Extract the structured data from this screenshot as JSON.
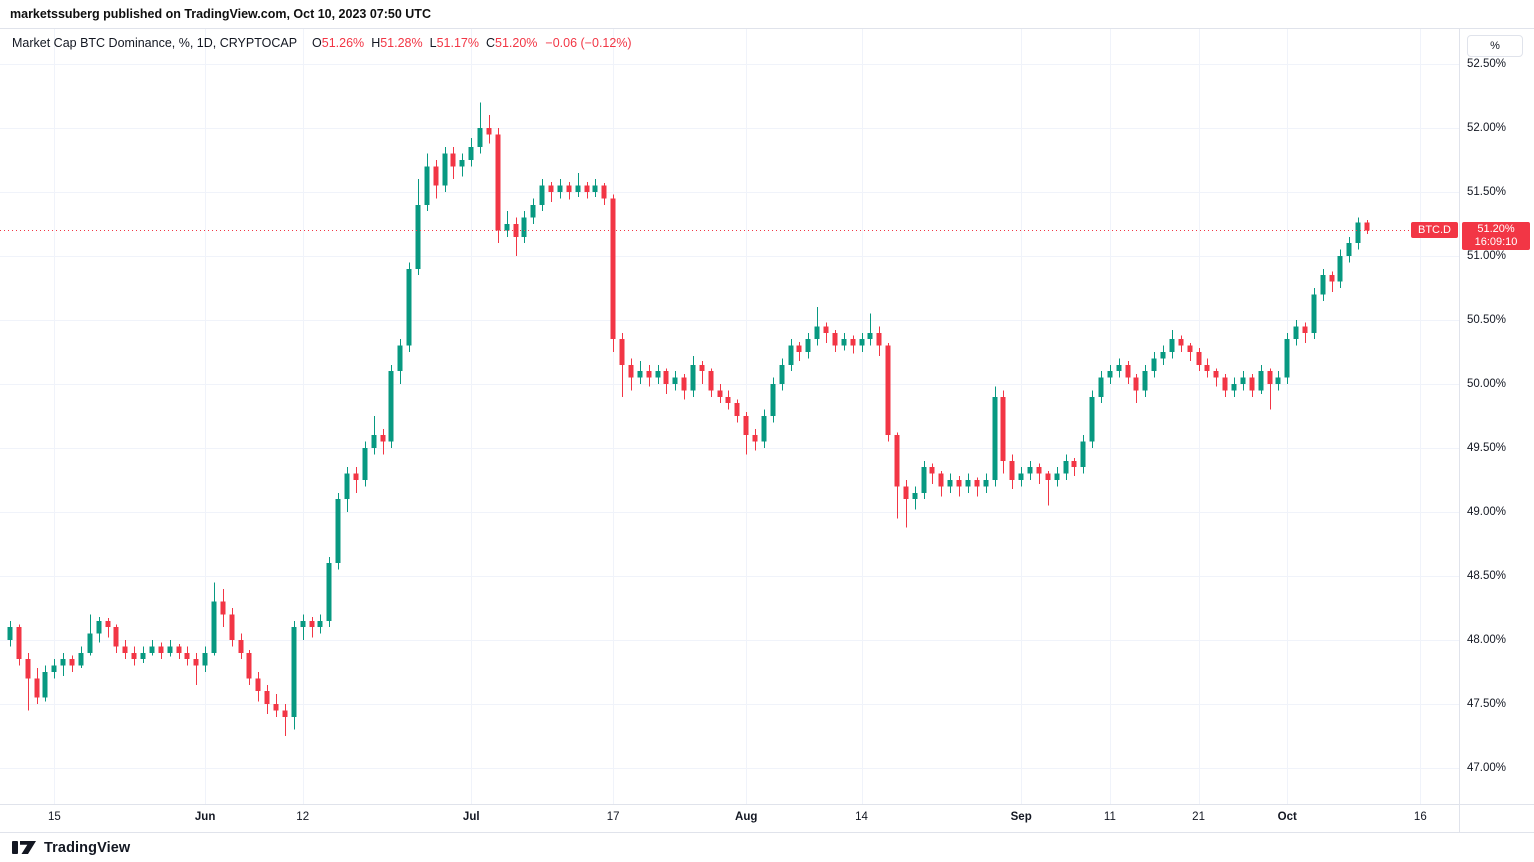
{
  "header": {
    "attribution": "marketssuberg published on TradingView.com, Oct 10, 2023 07:50 UTC"
  },
  "legend": {
    "title": "Market Cap BTC Dominance, %, 1D, CRYPTOCAP",
    "open_label": "O",
    "open": "51.26%",
    "high_label": "H",
    "high": "51.28%",
    "low_label": "L",
    "low": "51.17%",
    "close_label": "C",
    "close": "51.20%",
    "change": "−0.06 (−0.12%)"
  },
  "symbol_badge": "BTC.D",
  "price_axis": {
    "unit": "%",
    "labels": [
      "52.50%",
      "52.00%",
      "51.50%",
      "51.00%",
      "50.50%",
      "50.00%",
      "49.50%",
      "49.00%",
      "48.50%",
      "48.00%",
      "47.50%",
      "47.00%"
    ],
    "last_price_label": "51.20%",
    "countdown": "16:09:10"
  },
  "time_axis": {
    "ticks": [
      {
        "label": "15",
        "index": 5,
        "major": false
      },
      {
        "label": "Jun",
        "index": 22,
        "major": true
      },
      {
        "label": "12",
        "index": 33,
        "major": false
      },
      {
        "label": "Jul",
        "index": 52,
        "major": true
      },
      {
        "label": "17",
        "index": 68,
        "major": false
      },
      {
        "label": "Aug",
        "index": 83,
        "major": true
      },
      {
        "label": "14",
        "index": 96,
        "major": false
      },
      {
        "label": "Sep",
        "index": 114,
        "major": true
      },
      {
        "label": "11",
        "index": 124,
        "major": false
      },
      {
        "label": "21",
        "index": 134,
        "major": false
      },
      {
        "label": "Oct",
        "index": 144,
        "major": true
      },
      {
        "label": "16",
        "index": 159,
        "major": false
      }
    ]
  },
  "footer": {
    "brand": "TradingView"
  },
  "colors": {
    "up": "#089981",
    "down": "#f23645",
    "grid": "#f0f3fa",
    "axis_text": "#131722",
    "accent_red": "#f23645"
  },
  "chart_data": {
    "type": "candlestick",
    "title": "Market Cap BTC Dominance",
    "symbol": "CRYPTOCAP:BTC.D",
    "interval": "1D",
    "unit": "%",
    "y_range_visible": [
      46.8,
      52.75
    ],
    "y_gridlines": [
      47.0,
      47.5,
      48.0,
      48.5,
      49.0,
      49.5,
      50.0,
      50.5,
      51.0,
      51.5,
      52.0,
      52.5
    ],
    "price_line": 51.2,
    "last": {
      "open": 51.26,
      "high": 51.28,
      "low": 51.17,
      "close": 51.2,
      "change": -0.06,
      "change_pct": -0.12
    },
    "start_date": "2023-05-10",
    "interval_days": 1,
    "ohlc_note": "per-candle [open,high,low,close], daily from start_date, values in % dominance (estimated from chart)",
    "candles": [
      [
        48.0,
        48.15,
        47.95,
        48.1
      ],
      [
        48.1,
        48.12,
        47.8,
        47.85
      ],
      [
        47.85,
        47.9,
        47.45,
        47.7
      ],
      [
        47.7,
        47.78,
        47.5,
        47.55
      ],
      [
        47.55,
        47.8,
        47.52,
        47.75
      ],
      [
        47.75,
        47.85,
        47.7,
        47.8
      ],
      [
        47.8,
        47.9,
        47.72,
        47.85
      ],
      [
        47.85,
        47.88,
        47.75,
        47.8
      ],
      [
        47.8,
        47.95,
        47.78,
        47.9
      ],
      [
        47.9,
        48.2,
        47.88,
        48.05
      ],
      [
        48.05,
        48.18,
        47.98,
        48.15
      ],
      [
        48.15,
        48.17,
        48.02,
        48.1
      ],
      [
        48.1,
        48.12,
        47.9,
        47.95
      ],
      [
        47.95,
        48.0,
        47.85,
        47.9
      ],
      [
        47.9,
        47.95,
        47.8,
        47.85
      ],
      [
        47.85,
        47.95,
        47.82,
        47.9
      ],
      [
        47.9,
        48.0,
        47.88,
        47.95
      ],
      [
        47.95,
        47.98,
        47.85,
        47.9
      ],
      [
        47.9,
        48.0,
        47.87,
        47.95
      ],
      [
        47.95,
        47.97,
        47.85,
        47.9
      ],
      [
        47.9,
        47.95,
        47.8,
        47.85
      ],
      [
        47.85,
        47.9,
        47.65,
        47.8
      ],
      [
        47.8,
        47.95,
        47.75,
        47.9
      ],
      [
        47.9,
        48.45,
        47.88,
        48.3
      ],
      [
        48.3,
        48.4,
        48.1,
        48.2
      ],
      [
        48.2,
        48.25,
        47.95,
        48.0
      ],
      [
        48.0,
        48.05,
        47.85,
        47.9
      ],
      [
        47.9,
        47.92,
        47.65,
        47.7
      ],
      [
        47.7,
        47.75,
        47.52,
        47.6
      ],
      [
        47.6,
        47.65,
        47.42,
        47.5
      ],
      [
        47.5,
        47.58,
        47.4,
        47.45
      ],
      [
        47.45,
        47.5,
        47.25,
        47.4
      ],
      [
        47.4,
        48.15,
        47.3,
        48.1
      ],
      [
        48.1,
        48.2,
        48.0,
        48.15
      ],
      [
        48.15,
        48.18,
        48.02,
        48.1
      ],
      [
        48.1,
        48.2,
        48.05,
        48.15
      ],
      [
        48.15,
        48.65,
        48.1,
        48.6
      ],
      [
        48.6,
        49.15,
        48.55,
        49.1
      ],
      [
        49.1,
        49.35,
        49.0,
        49.3
      ],
      [
        49.3,
        49.35,
        49.15,
        49.25
      ],
      [
        49.25,
        49.55,
        49.2,
        49.5
      ],
      [
        49.5,
        49.75,
        49.45,
        49.6
      ],
      [
        49.6,
        49.65,
        49.45,
        49.55
      ],
      [
        49.55,
        50.15,
        49.5,
        50.1
      ],
      [
        50.1,
        50.35,
        50.0,
        50.3
      ],
      [
        50.3,
        50.95,
        50.25,
        50.9
      ],
      [
        50.9,
        51.6,
        50.85,
        51.4
      ],
      [
        51.4,
        51.8,
        51.35,
        51.7
      ],
      [
        51.7,
        51.75,
        51.45,
        51.55
      ],
      [
        51.55,
        51.85,
        51.5,
        51.8
      ],
      [
        51.8,
        51.85,
        51.6,
        51.7
      ],
      [
        51.7,
        51.8,
        51.62,
        51.75
      ],
      [
        51.75,
        51.92,
        51.7,
        51.85
      ],
      [
        51.85,
        52.2,
        51.8,
        52.0
      ],
      [
        52.0,
        52.1,
        51.88,
        51.95
      ],
      [
        51.95,
        52.0,
        51.1,
        51.2
      ],
      [
        51.2,
        51.35,
        51.15,
        51.25
      ],
      [
        51.25,
        51.3,
        51.0,
        51.15
      ],
      [
        51.15,
        51.35,
        51.1,
        51.3
      ],
      [
        51.3,
        51.45,
        51.25,
        51.4
      ],
      [
        51.4,
        51.6,
        51.35,
        51.55
      ],
      [
        51.55,
        51.58,
        51.42,
        51.5
      ],
      [
        51.5,
        51.6,
        51.45,
        51.55
      ],
      [
        51.55,
        51.58,
        51.44,
        51.5
      ],
      [
        51.5,
        51.65,
        51.46,
        51.55
      ],
      [
        51.55,
        51.58,
        51.45,
        51.5
      ],
      [
        51.5,
        51.6,
        51.46,
        51.55
      ],
      [
        51.55,
        51.57,
        51.4,
        51.45
      ],
      [
        51.45,
        51.48,
        50.25,
        50.35
      ],
      [
        50.35,
        50.4,
        49.9,
        50.15
      ],
      [
        50.15,
        50.2,
        49.95,
        50.05
      ],
      [
        50.05,
        50.18,
        50.0,
        50.1
      ],
      [
        50.1,
        50.15,
        49.98,
        50.05
      ],
      [
        50.05,
        50.15,
        50.0,
        50.1
      ],
      [
        50.1,
        50.12,
        49.92,
        50.0
      ],
      [
        50.0,
        50.1,
        49.95,
        50.05
      ],
      [
        50.05,
        50.08,
        49.88,
        49.95
      ],
      [
        49.95,
        50.22,
        49.9,
        50.15
      ],
      [
        50.15,
        50.18,
        50.0,
        50.1
      ],
      [
        50.1,
        50.12,
        49.9,
        49.95
      ],
      [
        49.95,
        50.0,
        49.85,
        49.9
      ],
      [
        49.9,
        49.95,
        49.8,
        49.85
      ],
      [
        49.85,
        49.88,
        49.7,
        49.75
      ],
      [
        49.75,
        49.78,
        49.45,
        49.6
      ],
      [
        49.6,
        49.65,
        49.48,
        49.55
      ],
      [
        49.55,
        49.8,
        49.5,
        49.75
      ],
      [
        49.75,
        50.05,
        49.7,
        50.0
      ],
      [
        50.0,
        50.2,
        49.95,
        50.15
      ],
      [
        50.15,
        50.35,
        50.1,
        50.3
      ],
      [
        50.3,
        50.33,
        50.18,
        50.25
      ],
      [
        50.25,
        50.4,
        50.2,
        50.35
      ],
      [
        50.35,
        50.6,
        50.3,
        50.45
      ],
      [
        50.45,
        50.48,
        50.32,
        50.4
      ],
      [
        50.4,
        50.42,
        50.25,
        50.3
      ],
      [
        50.3,
        50.4,
        50.26,
        50.35
      ],
      [
        50.35,
        50.38,
        50.24,
        50.3
      ],
      [
        50.3,
        50.4,
        50.25,
        50.35
      ],
      [
        50.35,
        50.55,
        50.3,
        50.4
      ],
      [
        50.4,
        50.45,
        50.22,
        50.3
      ],
      [
        50.3,
        50.32,
        49.55,
        49.6
      ],
      [
        49.6,
        49.62,
        48.95,
        49.2
      ],
      [
        49.2,
        49.25,
        48.88,
        49.1
      ],
      [
        49.1,
        49.2,
        49.02,
        49.15
      ],
      [
        49.15,
        49.4,
        49.1,
        49.35
      ],
      [
        49.35,
        49.38,
        49.22,
        49.3
      ],
      [
        49.3,
        49.32,
        49.12,
        49.2
      ],
      [
        49.2,
        49.3,
        49.15,
        49.25
      ],
      [
        49.25,
        49.28,
        49.12,
        49.2
      ],
      [
        49.2,
        49.3,
        49.15,
        49.25
      ],
      [
        49.25,
        49.27,
        49.12,
        49.2
      ],
      [
        49.2,
        49.3,
        49.15,
        49.25
      ],
      [
        49.25,
        49.98,
        49.2,
        49.9
      ],
      [
        49.9,
        49.95,
        49.3,
        49.4
      ],
      [
        49.4,
        49.45,
        49.18,
        49.25
      ],
      [
        49.25,
        49.35,
        49.2,
        49.3
      ],
      [
        49.3,
        49.4,
        49.25,
        49.35
      ],
      [
        49.35,
        49.38,
        49.22,
        49.3
      ],
      [
        49.3,
        49.32,
        49.05,
        49.25
      ],
      [
        49.25,
        49.35,
        49.2,
        49.3
      ],
      [
        49.3,
        49.45,
        49.25,
        49.4
      ],
      [
        49.4,
        49.42,
        49.28,
        49.35
      ],
      [
        49.35,
        49.6,
        49.3,
        49.55
      ],
      [
        49.55,
        49.95,
        49.5,
        49.9
      ],
      [
        49.9,
        50.1,
        49.85,
        50.05
      ],
      [
        50.05,
        50.15,
        50.0,
        50.1
      ],
      [
        50.1,
        50.2,
        50.05,
        50.15
      ],
      [
        50.15,
        50.18,
        50.0,
        50.05
      ],
      [
        50.05,
        50.08,
        49.85,
        49.95
      ],
      [
        49.95,
        50.15,
        49.9,
        50.1
      ],
      [
        50.1,
        50.25,
        50.05,
        50.2
      ],
      [
        50.2,
        50.3,
        50.15,
        50.25
      ],
      [
        50.25,
        50.42,
        50.2,
        50.35
      ],
      [
        50.35,
        50.38,
        50.25,
        50.3
      ],
      [
        50.3,
        50.32,
        50.18,
        50.25
      ],
      [
        50.25,
        50.28,
        50.1,
        50.15
      ],
      [
        50.15,
        50.2,
        50.05,
        50.1
      ],
      [
        50.1,
        50.12,
        49.98,
        50.05
      ],
      [
        50.05,
        50.08,
        49.9,
        49.95
      ],
      [
        49.95,
        50.05,
        49.9,
        50.0
      ],
      [
        50.0,
        50.1,
        49.95,
        50.05
      ],
      [
        50.05,
        50.08,
        49.9,
        49.95
      ],
      [
        49.95,
        50.15,
        49.92,
        50.1
      ],
      [
        50.1,
        50.12,
        49.8,
        50.0
      ],
      [
        50.0,
        50.1,
        49.95,
        50.05
      ],
      [
        50.05,
        50.4,
        50.0,
        50.35
      ],
      [
        50.35,
        50.5,
        50.3,
        50.45
      ],
      [
        50.45,
        50.48,
        50.32,
        50.4
      ],
      [
        50.4,
        50.75,
        50.35,
        50.7
      ],
      [
        50.7,
        50.9,
        50.65,
        50.85
      ],
      [
        50.85,
        50.88,
        50.72,
        50.8
      ],
      [
        50.8,
        51.05,
        50.75,
        51.0
      ],
      [
        51.0,
        51.15,
        50.95,
        51.1
      ],
      [
        51.1,
        51.3,
        51.05,
        51.26
      ],
      [
        51.26,
        51.28,
        51.17,
        51.2
      ]
    ]
  }
}
